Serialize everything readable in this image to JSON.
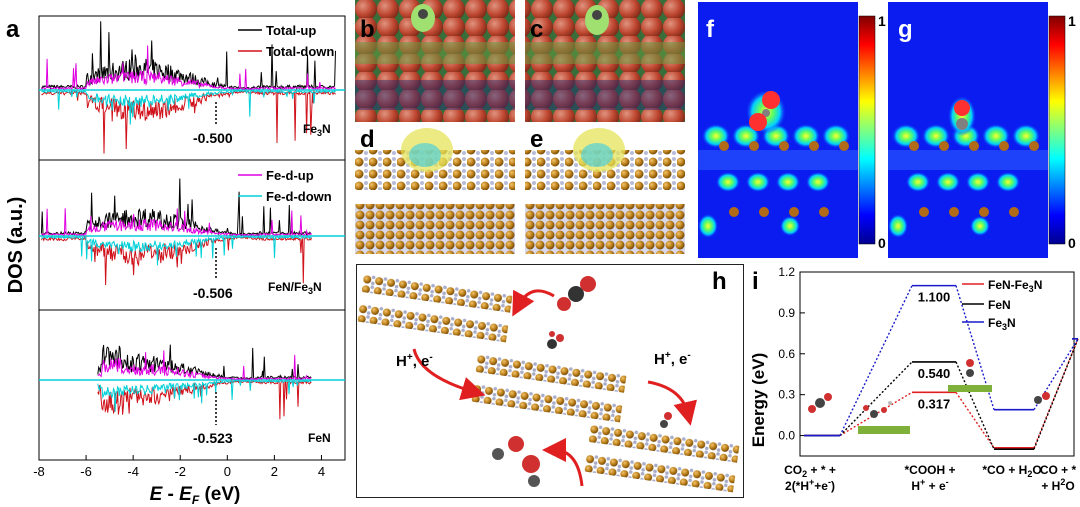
{
  "panel_labels": {
    "a": "a",
    "b": "b",
    "c": "c",
    "d": "d",
    "e": "e",
    "f": "f",
    "g": "g",
    "h": "h",
    "i": "i"
  },
  "dos": {
    "ylabel": "DOS (a.u.)",
    "xlabel_E": "E",
    "xlabel_minus": " - ",
    "xlabel_EF": "E",
    "xlabel_F": "F",
    "xlabel_unit": " (eV)",
    "xticks": [
      "-8",
      "-6",
      "-4",
      "-2",
      "0",
      "2",
      "4"
    ],
    "legend_top": [
      "Total-up",
      "Total-down"
    ],
    "legend_mid": [
      "Fe-d-up",
      "Fe-d-down"
    ],
    "colors": {
      "total_up": "#000000",
      "total_down": "#d0121b",
      "fed_up": "#e000e0",
      "fed_down": "#00d0d8"
    },
    "subpanels": [
      {
        "name": "Fe",
        "sub": "3",
        "tail": "N",
        "center": "-0.500"
      },
      {
        "name": "FeN/Fe",
        "sub": "3",
        "tail": "N",
        "center": "-0.506"
      },
      {
        "name": "FeN",
        "sub": "",
        "tail": "",
        "center": "-0.523"
      }
    ]
  },
  "colorbar": {
    "max": "1",
    "min": "0"
  },
  "scheme": {
    "step1": "H",
    "step1_sup": "+",
    "step1_rest": ", e",
    "step1_sup2": "-",
    "step2": "H",
    "step2_sup": "+",
    "step2_rest": ", e",
    "step2_sup2": "-"
  },
  "chart_data": {
    "type": "line",
    "ylabel": "Energy (eV)",
    "ylim": [
      -0.15,
      1.2
    ],
    "yticks": [
      "0.0",
      "0.3",
      "0.6",
      "0.9",
      "1.2"
    ],
    "categories": [
      "CO2 + * + 2(*H++e-)",
      "*COOH + H+ + e-",
      "*CO + H2O",
      "CO + * + H2O"
    ],
    "series": [
      {
        "name": "FeN-Fe3N",
        "color": "#e02020",
        "values": [
          0.0,
          0.317,
          -0.09,
          0.71
        ]
      },
      {
        "name": "FeN",
        "color": "#000000",
        "values": [
          0.0,
          0.54,
          -0.1,
          0.71
        ]
      },
      {
        "name": "Fe3N",
        "color": "#1a1acc",
        "values": [
          0.0,
          1.1,
          0.19,
          0.71
        ]
      }
    ],
    "legend": [
      "FeN-Fe",
      "3",
      "N",
      "FeN",
      "Fe",
      "3",
      "N"
    ],
    "labels": [
      "1.100",
      "0.540",
      "0.317"
    ],
    "xlabels": [
      {
        "l1a": "CO",
        "l1s": "2",
        "l1b": " + * +",
        "l2a": "2(*H",
        "l2s": "+",
        "l2b": "+e",
        "l2t": "-",
        "l2c": ")"
      },
      {
        "l1a": "*COOH +",
        "l2a": "H",
        "l2s": "+",
        "l2b": " + e",
        "l2t": "-"
      },
      {
        "l1a": "*CO + H",
        "l1s": "2",
        "l1b": "O"
      },
      {
        "l1a": "CO + *",
        "l2a": "+ H",
        "l2s": "2",
        "l2b": "O"
      }
    ]
  }
}
